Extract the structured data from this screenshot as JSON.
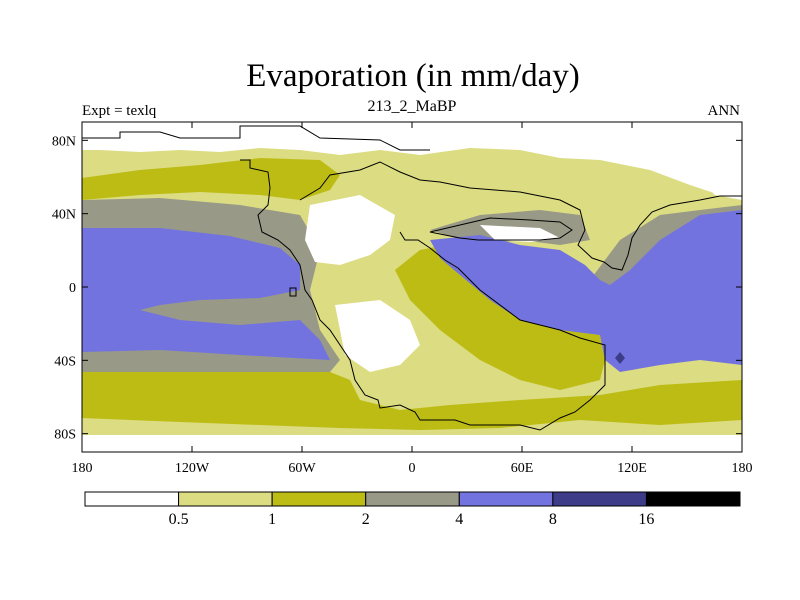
{
  "title": "Evaporation (in mm/day)",
  "subtitle": "213_2_MaBP",
  "left_label": "Expt = texlq",
  "right_label": "ANN",
  "map": {
    "lon_range": [
      -180,
      180
    ],
    "lat_range": [
      -90,
      90
    ],
    "lat_ticks": [
      {
        "value": 80,
        "label": "80N"
      },
      {
        "value": 40,
        "label": "40N"
      },
      {
        "value": 0,
        "label": "0"
      },
      {
        "value": -40,
        "label": "40S"
      },
      {
        "value": -80,
        "label": "80S"
      }
    ],
    "lon_ticks": [
      {
        "value": -180,
        "label": "180"
      },
      {
        "value": -120,
        "label": "120W"
      },
      {
        "value": -60,
        "label": "60W"
      },
      {
        "value": 0,
        "label": "0"
      },
      {
        "value": 60,
        "label": "60E"
      },
      {
        "value": 120,
        "label": "120E"
      },
      {
        "value": 180,
        "label": "180"
      }
    ]
  },
  "colorbar": {
    "levels": [
      "0.5",
      "1",
      "2",
      "4",
      "8",
      "16"
    ],
    "colors": [
      "#ffffff",
      "#dcdc82",
      "#bcbc14",
      "#999988",
      "#7373e0",
      "#3c3c88",
      "#000000"
    ]
  }
}
